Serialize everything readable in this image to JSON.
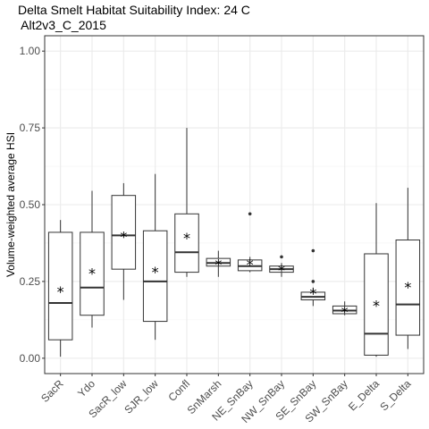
{
  "chart_data": {
    "type": "boxplot",
    "title": "Delta Smelt Habitat Suitability Index: 24 C",
    "subtitle": "Alt2v3_C_2015",
    "ylabel": "Volume-weighted average HSI",
    "xlabel": "",
    "ylim": [
      -0.05,
      1.05
    ],
    "yticks": [
      "0.00",
      "0.25",
      "0.50",
      "0.75",
      "1.00"
    ],
    "ytick_values": [
      0,
      0.25,
      0.5,
      0.75,
      1.0
    ],
    "grid": true,
    "mean_marker": "*",
    "categories": [
      "SacR",
      "Ydo",
      "SacR_low",
      "SJR_low",
      "Confl",
      "SnMarsh",
      "NE_SnBay",
      "NW_SnBay",
      "SE_SnBay",
      "SW_SnBay",
      "E_Delta",
      "S_Delta"
    ],
    "boxes": [
      {
        "min": 0.005,
        "q1": 0.06,
        "median": 0.18,
        "q3": 0.41,
        "max": 0.45,
        "mean": 0.22,
        "outliers": []
      },
      {
        "min": 0.1,
        "q1": 0.14,
        "median": 0.23,
        "q3": 0.41,
        "max": 0.545,
        "mean": 0.28,
        "outliers": []
      },
      {
        "min": 0.19,
        "q1": 0.29,
        "median": 0.4,
        "q3": 0.53,
        "max": 0.57,
        "mean": 0.4,
        "outliers": []
      },
      {
        "min": 0.06,
        "q1": 0.12,
        "median": 0.25,
        "q3": 0.415,
        "max": 0.6,
        "mean": 0.285,
        "outliers": []
      },
      {
        "min": 0.265,
        "q1": 0.28,
        "median": 0.345,
        "q3": 0.47,
        "max": 0.75,
        "mean": 0.395,
        "outliers": []
      },
      {
        "min": 0.265,
        "q1": 0.3,
        "median": 0.31,
        "q3": 0.325,
        "max": 0.35,
        "mean": 0.31,
        "outliers": []
      },
      {
        "min": 0.28,
        "q1": 0.285,
        "median": 0.3,
        "q3": 0.32,
        "max": 0.33,
        "mean": 0.31,
        "outliers": [
          0.47
        ]
      },
      {
        "min": 0.265,
        "q1": 0.28,
        "median": 0.29,
        "q3": 0.3,
        "max": 0.31,
        "mean": 0.29,
        "outliers": [
          0.33
        ]
      },
      {
        "min": 0.17,
        "q1": 0.19,
        "median": 0.2,
        "q3": 0.215,
        "max": 0.23,
        "mean": 0.215,
        "outliers": [
          0.35,
          0.25
        ]
      },
      {
        "min": 0.14,
        "q1": 0.145,
        "median": 0.155,
        "q3": 0.17,
        "max": 0.185,
        "mean": 0.155,
        "outliers": []
      },
      {
        "min": 0.005,
        "q1": 0.01,
        "median": 0.08,
        "q3": 0.34,
        "max": 0.505,
        "mean": 0.175,
        "outliers": []
      },
      {
        "min": 0.03,
        "q1": 0.075,
        "median": 0.175,
        "q3": 0.385,
        "max": 0.555,
        "mean": 0.235,
        "outliers": []
      }
    ]
  }
}
